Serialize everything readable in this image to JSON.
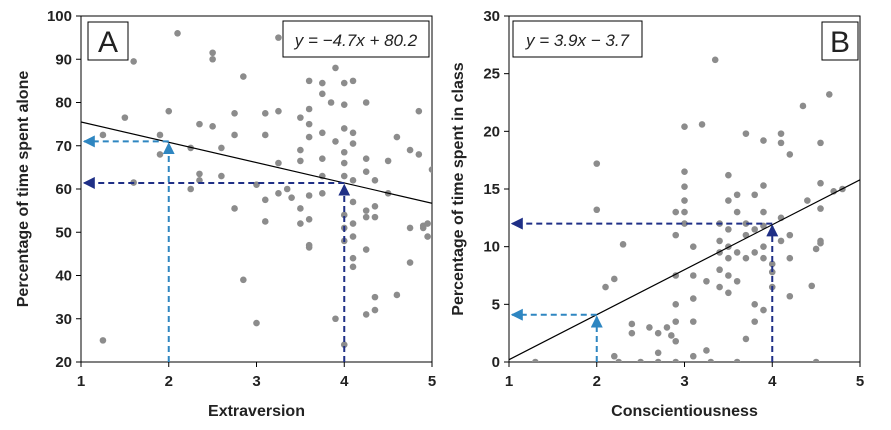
{
  "chart_data": [
    {
      "type": "scatter",
      "panel_label": "A",
      "equation": "y = −4.7x + 80.2",
      "xlabel": "Extraversion",
      "ylabel": "Percentage of time spent alone",
      "xlim": [
        1,
        5
      ],
      "ylim": [
        20,
        100
      ],
      "xticks": [
        1,
        2,
        3,
        4,
        5
      ],
      "yticks": [
        20,
        30,
        40,
        50,
        60,
        70,
        80,
        90,
        100
      ],
      "regression": {
        "slope": -4.7,
        "intercept": 80.2
      },
      "guides": [
        {
          "x": 2,
          "y": 71,
          "color": "#2e86c1"
        },
        {
          "x": 4,
          "y": 61.4,
          "color": "#1f2f86"
        }
      ],
      "points": [
        [
          1.25,
          25.0
        ],
        [
          1.25,
          72.5
        ],
        [
          1.5,
          76.5
        ],
        [
          1.6,
          61.5
        ],
        [
          1.6,
          89.5
        ],
        [
          1.9,
          68.0
        ],
        [
          1.9,
          72.5
        ],
        [
          2.0,
          78.0
        ],
        [
          2.1,
          96.0
        ],
        [
          2.25,
          69.5
        ],
        [
          2.25,
          60.0
        ],
        [
          2.35,
          63.5
        ],
        [
          2.35,
          62.0
        ],
        [
          2.35,
          75.0
        ],
        [
          2.5,
          74.5
        ],
        [
          2.5,
          91.5
        ],
        [
          2.5,
          90.0
        ],
        [
          2.6,
          69.5
        ],
        [
          2.6,
          63.0
        ],
        [
          2.75,
          77.5
        ],
        [
          2.75,
          72.5
        ],
        [
          2.75,
          55.5
        ],
        [
          2.85,
          86.0
        ],
        [
          2.85,
          39.0
        ],
        [
          3.0,
          29.0
        ],
        [
          3.0,
          61.0
        ],
        [
          3.1,
          57.5
        ],
        [
          3.1,
          52.5
        ],
        [
          3.1,
          72.5
        ],
        [
          3.1,
          77.5
        ],
        [
          3.25,
          78.0
        ],
        [
          3.25,
          66.0
        ],
        [
          3.25,
          95.0
        ],
        [
          3.25,
          59.0
        ],
        [
          3.35,
          60.0
        ],
        [
          3.4,
          58.0
        ],
        [
          3.5,
          76.5
        ],
        [
          3.5,
          69.0
        ],
        [
          3.5,
          66.5
        ],
        [
          3.5,
          55.5
        ],
        [
          3.5,
          52.0
        ],
        [
          3.6,
          85.0
        ],
        [
          3.6,
          78.5
        ],
        [
          3.6,
          75.0
        ],
        [
          3.6,
          72.0
        ],
        [
          3.6,
          58.5
        ],
        [
          3.6,
          53.0
        ],
        [
          3.6,
          47.0
        ],
        [
          3.6,
          46.5
        ],
        [
          3.75,
          84.5
        ],
        [
          3.75,
          82.0
        ],
        [
          3.75,
          73.0
        ],
        [
          3.75,
          67.0
        ],
        [
          3.75,
          63.0
        ],
        [
          3.75,
          59.0
        ],
        [
          3.85,
          80.0
        ],
        [
          3.9,
          88.0
        ],
        [
          3.9,
          71.0
        ],
        [
          3.9,
          30.0
        ],
        [
          4.0,
          84.5
        ],
        [
          4.0,
          79.5
        ],
        [
          4.0,
          74.0
        ],
        [
          4.0,
          68.5
        ],
        [
          4.0,
          66.0
        ],
        [
          4.0,
          63.0
        ],
        [
          4.0,
          54.0
        ],
        [
          4.0,
          51.0
        ],
        [
          4.0,
          48.0
        ],
        [
          4.0,
          24.0
        ],
        [
          4.1,
          85.0
        ],
        [
          4.1,
          73.0
        ],
        [
          4.1,
          70.5
        ],
        [
          4.1,
          62.0
        ],
        [
          4.1,
          57.0
        ],
        [
          4.1,
          52.0
        ],
        [
          4.1,
          49.0
        ],
        [
          4.1,
          44.0
        ],
        [
          4.1,
          42.0
        ],
        [
          4.25,
          80.0
        ],
        [
          4.25,
          67.0
        ],
        [
          4.25,
          64.0
        ],
        [
          4.25,
          55.0
        ],
        [
          4.25,
          53.5
        ],
        [
          4.25,
          46.0
        ],
        [
          4.25,
          31.0
        ],
        [
          4.35,
          62.0
        ],
        [
          4.35,
          56.0
        ],
        [
          4.35,
          53.5
        ],
        [
          4.35,
          35.0
        ],
        [
          4.35,
          32.0
        ],
        [
          4.5,
          66.5
        ],
        [
          4.5,
          59.0
        ],
        [
          4.6,
          72.0
        ],
        [
          4.6,
          35.5
        ],
        [
          4.75,
          69.0
        ],
        [
          4.75,
          51.0
        ],
        [
          4.75,
          43.0
        ],
        [
          4.85,
          78.0
        ],
        [
          4.85,
          68.0
        ],
        [
          4.9,
          51.5
        ],
        [
          4.9,
          51.0
        ],
        [
          4.95,
          52.0
        ],
        [
          4.95,
          49.0
        ],
        [
          5.0,
          64.5
        ]
      ]
    },
    {
      "type": "scatter",
      "panel_label": "B",
      "equation": "y = 3.9x − 3.7",
      "xlabel": "Conscientiousness",
      "ylabel": "Percentage of time spent in class",
      "xlim": [
        1,
        5
      ],
      "ylim": [
        0,
        30
      ],
      "xticks": [
        1,
        2,
        3,
        4,
        5
      ],
      "yticks": [
        0,
        5,
        10,
        15,
        20,
        25,
        30
      ],
      "regression": {
        "slope": 3.9,
        "intercept": -3.7
      },
      "guides": [
        {
          "x": 2,
          "y": 4.1,
          "color": "#2e86c1"
        },
        {
          "x": 4,
          "y": 12.0,
          "color": "#1f2f86"
        }
      ],
      "points": [
        [
          1.3,
          0.0
        ],
        [
          2.0,
          17.2
        ],
        [
          2.0,
          13.2
        ],
        [
          2.1,
          6.5
        ],
        [
          2.2,
          7.2
        ],
        [
          2.2,
          0.5
        ],
        [
          2.25,
          0.0
        ],
        [
          2.3,
          10.2
        ],
        [
          2.4,
          2.5
        ],
        [
          2.4,
          3.3
        ],
        [
          2.5,
          0.0
        ],
        [
          2.6,
          3.0
        ],
        [
          2.7,
          2.5
        ],
        [
          2.7,
          0.8
        ],
        [
          2.7,
          0.0
        ],
        [
          2.8,
          3.0
        ],
        [
          2.85,
          2.3
        ],
        [
          2.9,
          13.0
        ],
        [
          2.9,
          11.0
        ],
        [
          2.9,
          7.5
        ],
        [
          2.9,
          5.0
        ],
        [
          2.9,
          3.5
        ],
        [
          2.9,
          1.8
        ],
        [
          2.9,
          0.0
        ],
        [
          3.0,
          20.4
        ],
        [
          3.0,
          16.5
        ],
        [
          3.0,
          15.2
        ],
        [
          3.0,
          14.0
        ],
        [
          3.0,
          13.0
        ],
        [
          3.0,
          12.0
        ],
        [
          3.1,
          10.0
        ],
        [
          3.1,
          7.5
        ],
        [
          3.1,
          5.5
        ],
        [
          3.1,
          3.5
        ],
        [
          3.1,
          0.5
        ],
        [
          3.2,
          20.6
        ],
        [
          3.25,
          7.0
        ],
        [
          3.25,
          1.0
        ],
        [
          3.3,
          0.0
        ],
        [
          3.35,
          26.2
        ],
        [
          3.4,
          12.0
        ],
        [
          3.4,
          10.5
        ],
        [
          3.4,
          9.5
        ],
        [
          3.4,
          8.0
        ],
        [
          3.4,
          6.5
        ],
        [
          3.5,
          16.2
        ],
        [
          3.5,
          14.0
        ],
        [
          3.5,
          11.5
        ],
        [
          3.5,
          10.0
        ],
        [
          3.5,
          9.0
        ],
        [
          3.5,
          7.5
        ],
        [
          3.5,
          6.0
        ],
        [
          3.6,
          14.5
        ],
        [
          3.6,
          13.0
        ],
        [
          3.6,
          9.5
        ],
        [
          3.6,
          7.0
        ],
        [
          3.6,
          0.0
        ],
        [
          3.7,
          19.8
        ],
        [
          3.7,
          12.0
        ],
        [
          3.7,
          11.0
        ],
        [
          3.7,
          9.0
        ],
        [
          3.7,
          2.0
        ],
        [
          3.8,
          14.5
        ],
        [
          3.8,
          11.5
        ],
        [
          3.8,
          9.5
        ],
        [
          3.8,
          5.0
        ],
        [
          3.8,
          3.5
        ],
        [
          3.9,
          19.2
        ],
        [
          3.9,
          15.3
        ],
        [
          3.9,
          13.0
        ],
        [
          3.9,
          11.8
        ],
        [
          3.9,
          10.0
        ],
        [
          3.9,
          9.0
        ],
        [
          3.9,
          4.5
        ],
        [
          4.0,
          8.5
        ],
        [
          4.0,
          7.8
        ],
        [
          4.0,
          6.5
        ],
        [
          4.1,
          19.8
        ],
        [
          4.1,
          19.0
        ],
        [
          4.1,
          12.5
        ],
        [
          4.1,
          10.5
        ],
        [
          4.2,
          18.0
        ],
        [
          4.2,
          11.0
        ],
        [
          4.2,
          9.0
        ],
        [
          4.2,
          5.7
        ],
        [
          4.35,
          22.2
        ],
        [
          4.4,
          14.0
        ],
        [
          4.45,
          6.6
        ],
        [
          4.5,
          9.8
        ],
        [
          4.5,
          0.0
        ],
        [
          4.55,
          19.0
        ],
        [
          4.55,
          15.5
        ],
        [
          4.55,
          13.3
        ],
        [
          4.55,
          10.5
        ],
        [
          4.55,
          10.3
        ],
        [
          4.65,
          23.2
        ],
        [
          4.7,
          14.8
        ],
        [
          4.8,
          15.0
        ]
      ]
    }
  ]
}
